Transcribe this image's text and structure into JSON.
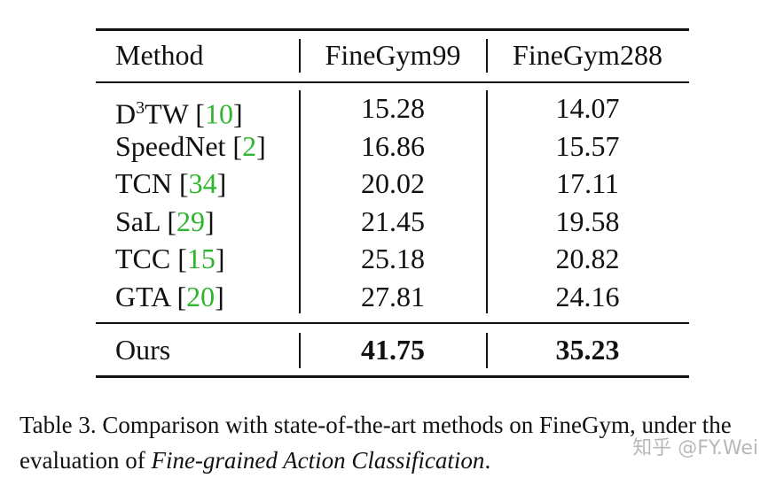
{
  "table": {
    "header": [
      "Method",
      "FineGym99",
      "FineGym288"
    ],
    "rows": [
      {
        "method": "D",
        "method_sup": "3",
        "method_tail": "TW",
        "ref": "[10]",
        "values": [
          15.28,
          14.07
        ]
      },
      {
        "method": "SpeedNet",
        "ref": "[2]",
        "values": [
          16.86,
          15.57
        ]
      },
      {
        "method": "TCN",
        "ref": "[34]",
        "values": [
          20.02,
          17.11
        ]
      },
      {
        "method": "SaL",
        "ref": "[29]",
        "values": [
          21.45,
          19.58
        ]
      },
      {
        "method": "TCC",
        "ref": "[15]",
        "values": [
          25.18,
          20.82
        ]
      },
      {
        "method": "GTA",
        "ref": "[20]",
        "values": [
          27.81,
          24.16
        ]
      }
    ],
    "ours": {
      "method": "Ours",
      "values": [
        41.75,
        35.23
      ]
    }
  },
  "caption": {
    "label": "Table 3.",
    "text": "Comparison with state-of-the-art methods on FineGym, under the evaluation of",
    "italic": "Fine-grained Action Classification",
    "end": "."
  },
  "watermark": "知乎 @FY.Wei"
}
